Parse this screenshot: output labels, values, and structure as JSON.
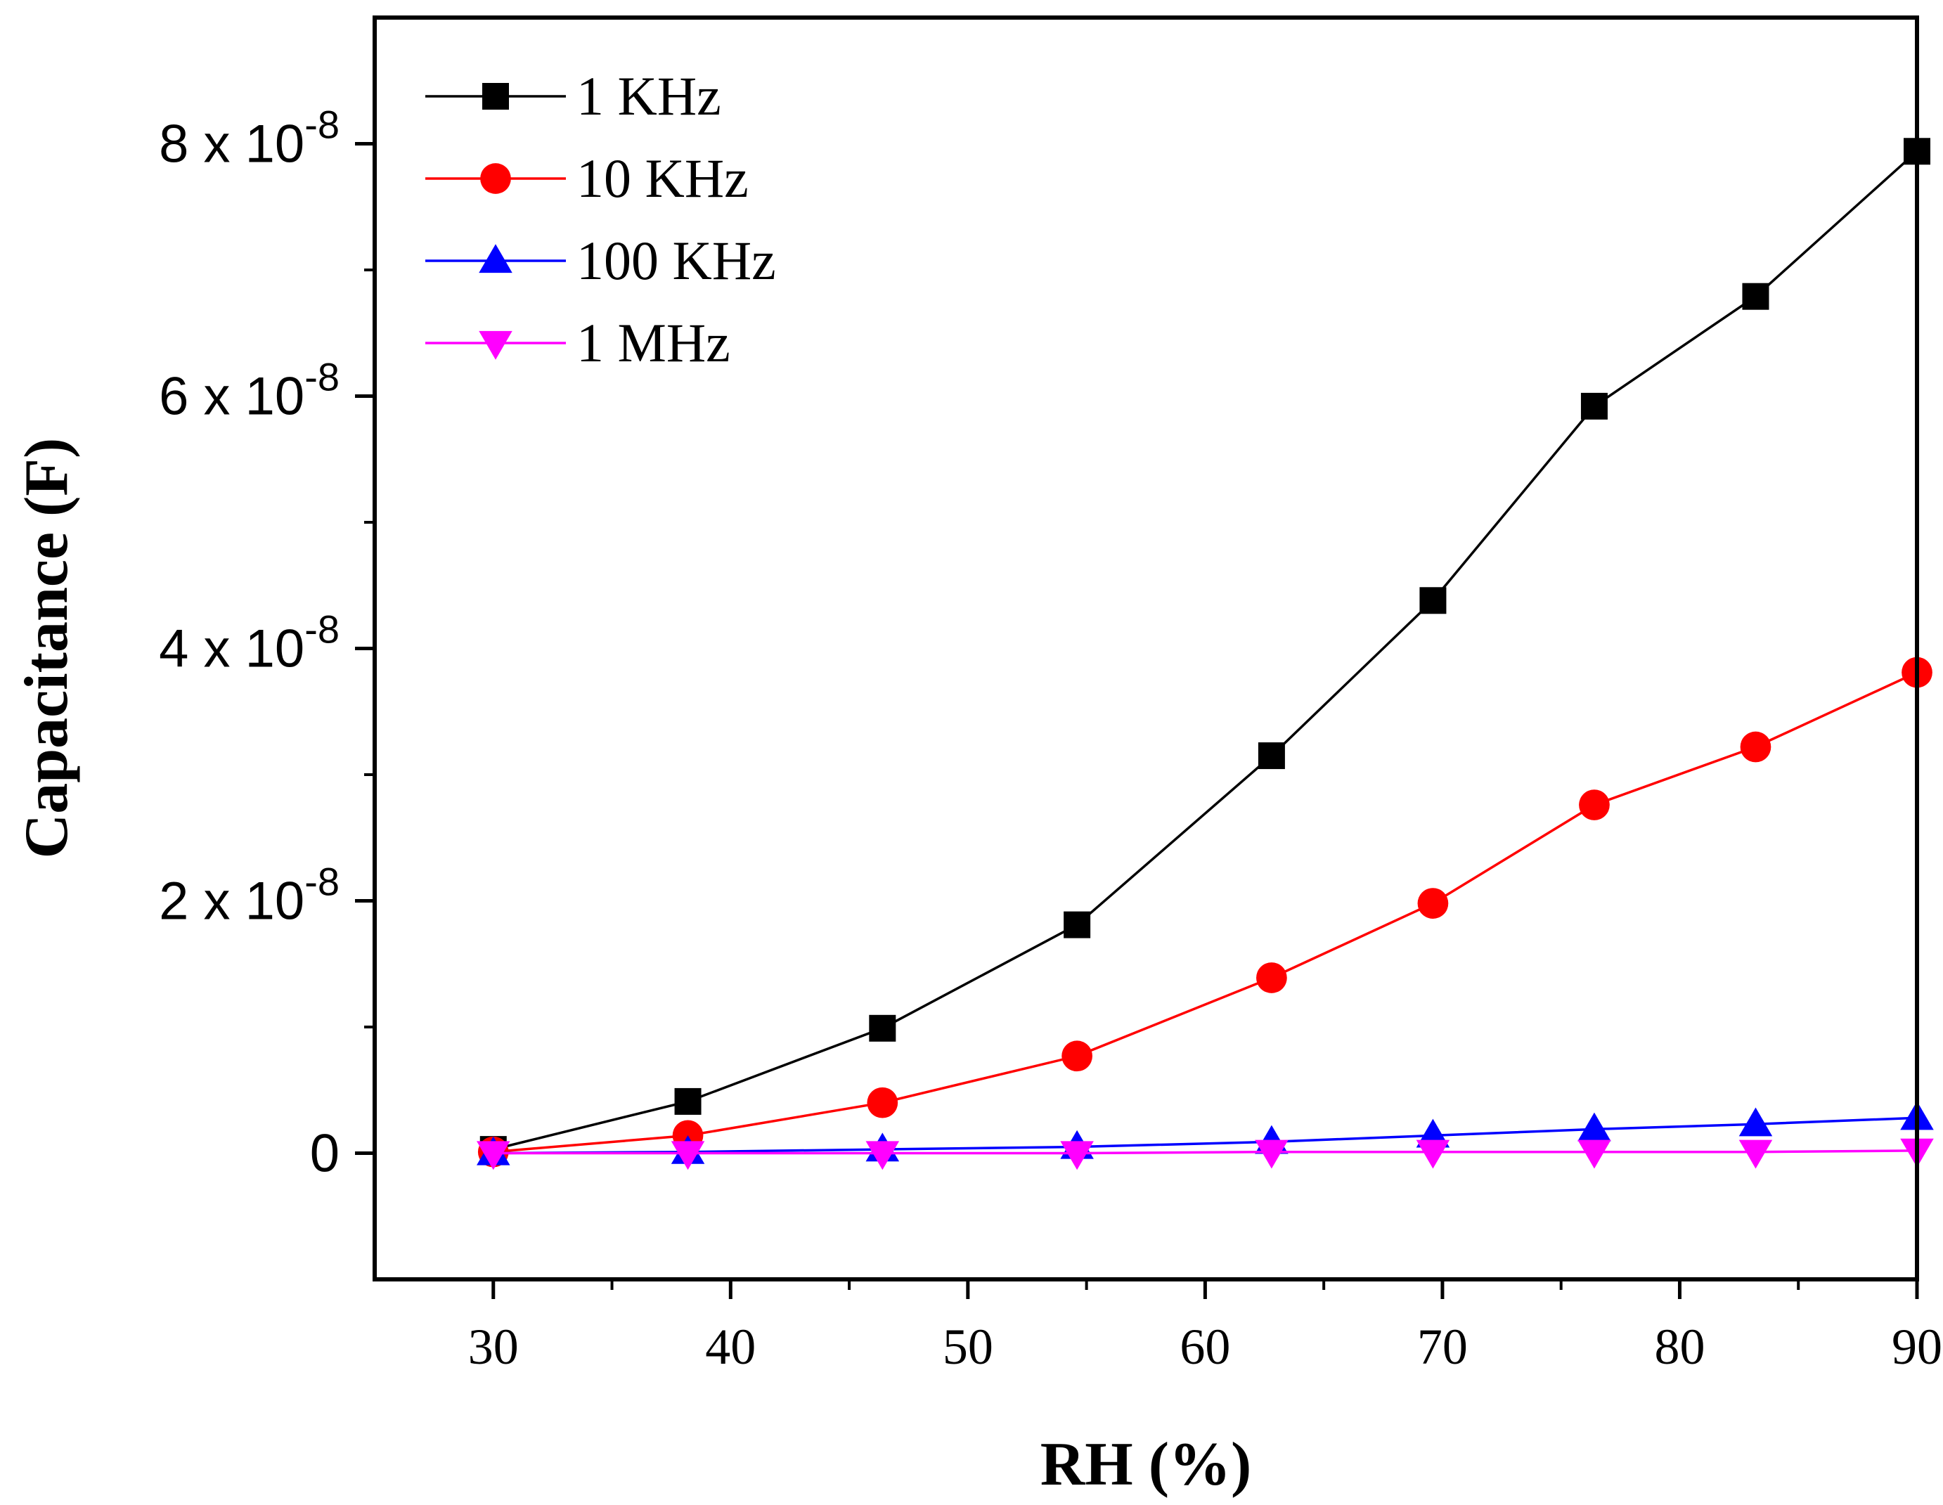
{
  "chart_data": {
    "type": "line",
    "title": "",
    "xlabel": "RH (%)",
    "ylabel": "Capacitance (F)",
    "xlim": [
      25,
      90
    ],
    "ylim": [
      -1e-08,
      9e-08
    ],
    "xticks": [
      30,
      40,
      50,
      60,
      70,
      80,
      90
    ],
    "xtick_labels": [
      "30",
      "40",
      "50",
      "60",
      "70",
      "80",
      "90"
    ],
    "yticks": [
      0,
      2e-08,
      4e-08,
      6e-08,
      8e-08
    ],
    "ytick_labels": [
      {
        "mantissa": "0",
        "exponent": ""
      },
      {
        "mantissa": "2 x 10",
        "exponent": "-8"
      },
      {
        "mantissa": "4 x 10",
        "exponent": "-8"
      },
      {
        "mantissa": "6 x 10",
        "exponent": "-8"
      },
      {
        "mantissa": "8 x 10",
        "exponent": "-8"
      }
    ],
    "legend_position": "top-left",
    "x": [
      30,
      38.2,
      46.4,
      54.6,
      62.8,
      69.6,
      76.4,
      83.2,
      90
    ],
    "series": [
      {
        "name": "1 KHz",
        "color": "#000000",
        "marker": "square",
        "values": [
          3e-10,
          4.1e-09,
          9.9e-09,
          1.81e-08,
          3.15e-08,
          4.38e-08,
          5.92e-08,
          6.79e-08,
          7.94e-08
        ]
      },
      {
        "name": "10 KHz",
        "color": "#ff0000",
        "marker": "circle",
        "values": [
          1e-10,
          1.4e-09,
          4e-09,
          7.7e-09,
          1.39e-08,
          1.98e-08,
          2.76e-08,
          3.22e-08,
          3.81e-08
        ]
      },
      {
        "name": "100 KHz",
        "color": "#0000ff",
        "marker": "triangle-up",
        "values": [
          0,
          1e-10,
          3e-10,
          5e-10,
          9e-10,
          1.4e-09,
          1.9e-09,
          2.3e-09,
          2.8e-09
        ]
      },
      {
        "name": "1 MHz",
        "color": "#ff00ff",
        "marker": "triangle-down",
        "values": [
          0,
          0,
          0,
          0,
          1e-10,
          1e-10,
          1e-10,
          1e-10,
          2e-10
        ]
      }
    ]
  }
}
